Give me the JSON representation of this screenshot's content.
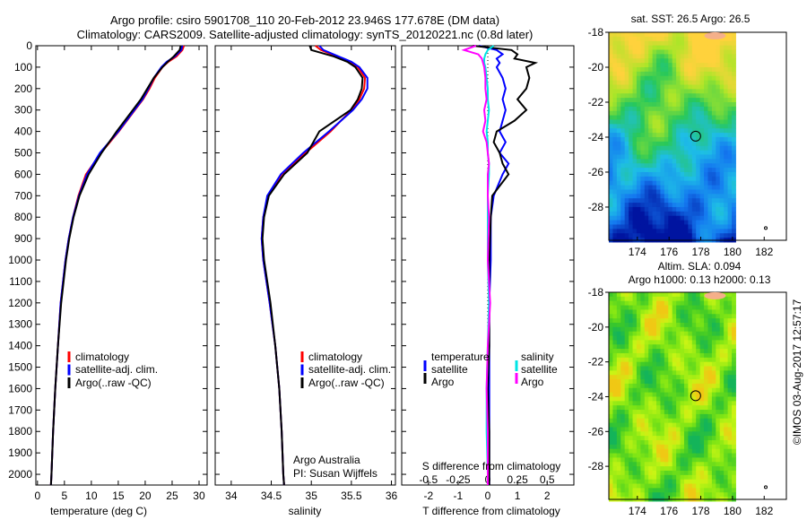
{
  "title": {
    "line1": "Argo profile: csiro 5901708_110 20-Feb-2012 23.946S 177.678E (DM data)",
    "line2": "Climatology: CARS2009. Satellite-adjusted climatology: synTS_20120221.nc (0.8d later)"
  },
  "colors": {
    "climatology": "#ff0000",
    "satellite": "#0000ff",
    "argo": "#000000",
    "sal_satellite": "#00e5e5",
    "sal_argo": "#ff00ff"
  },
  "chart_data": [
    {
      "type": "line",
      "name": "temperature",
      "xlabel": "temperature (deg C)",
      "xlim": [
        -0.3,
        31.5
      ],
      "ylim": [
        2050,
        0
      ],
      "xticks": [
        0,
        5,
        10,
        15,
        20,
        25,
        30
      ],
      "yticks": [
        0,
        100,
        200,
        300,
        400,
        500,
        600,
        700,
        800,
        900,
        1000,
        1100,
        1200,
        1300,
        1400,
        1500,
        1600,
        1700,
        1800,
        1900,
        2000
      ],
      "depth": [
        0,
        20,
        50,
        75,
        100,
        150,
        200,
        250,
        300,
        400,
        500,
        600,
        700,
        800,
        900,
        1000,
        1200,
        1400,
        1600,
        1800,
        2000,
        2050
      ],
      "series": [
        {
          "name": "climatology",
          "values": [
            27.2,
            26.9,
            25.8,
            24.3,
            23.2,
            21.8,
            20.8,
            19.6,
            18.1,
            15.1,
            11.8,
            9.0,
            7.6,
            6.6,
            5.8,
            5.2,
            4.3,
            3.8,
            3.3,
            2.9,
            2.6,
            2.5
          ]
        },
        {
          "name": "satellite-adj. clim.",
          "values": [
            26.9,
            26.7,
            25.5,
            24.0,
            23.0,
            21.6,
            20.6,
            19.5,
            18.0,
            15.0,
            11.6,
            9.2,
            7.7,
            6.6,
            5.8,
            5.2,
            4.3,
            3.8,
            3.3,
            2.9,
            2.6,
            2.5
          ]
        },
        {
          "name": "Argo(..raw -QC)",
          "values": [
            26.6,
            26.4,
            25.3,
            24.2,
            23.2,
            21.6,
            20.4,
            19.2,
            17.7,
            14.7,
            11.9,
            9.5,
            7.8,
            6.7,
            5.9,
            5.3,
            4.4,
            3.8,
            3.3,
            2.9,
            2.6,
            2.5
          ]
        }
      ],
      "legend": [
        "climatology",
        "satellite-adj. clim.",
        "Argo(..raw -QC)"
      ]
    },
    {
      "type": "line",
      "name": "salinity",
      "xlabel": "salinity",
      "xlim": [
        33.8,
        36.05
      ],
      "ylim": [
        2050,
        0
      ],
      "xticks": [
        34,
        34.5,
        35,
        35.5,
        36
      ],
      "depth": [
        0,
        20,
        50,
        75,
        100,
        150,
        200,
        250,
        300,
        400,
        500,
        600,
        700,
        800,
        900,
        1000,
        1200,
        1400,
        1600,
        1800,
        2000,
        2050
      ],
      "series": [
        {
          "name": "climatology",
          "values": [
            35.05,
            35.12,
            35.32,
            35.48,
            35.58,
            35.67,
            35.66,
            35.6,
            35.5,
            35.24,
            34.93,
            34.63,
            34.46,
            34.4,
            34.38,
            34.4,
            34.48,
            34.55,
            34.6,
            34.63,
            34.65,
            34.66
          ]
        },
        {
          "name": "satellite-adj. clim.",
          "values": [
            35.1,
            35.15,
            35.34,
            35.5,
            35.6,
            35.7,
            35.7,
            35.63,
            35.52,
            35.22,
            34.9,
            34.62,
            34.45,
            34.4,
            34.38,
            34.4,
            34.48,
            34.55,
            34.6,
            34.63,
            34.65,
            34.66
          ]
        },
        {
          "name": "Argo(..raw -QC)",
          "values": [
            34.98,
            35.0,
            35.28,
            35.45,
            35.55,
            35.64,
            35.63,
            35.58,
            35.49,
            35.1,
            34.95,
            34.66,
            34.47,
            34.41,
            34.39,
            34.41,
            34.49,
            34.55,
            34.6,
            34.63,
            34.65,
            34.66
          ]
        }
      ],
      "legend": [
        "climatology",
        "satellite-adj. clim.",
        "Argo(..raw -QC)"
      ],
      "annotation": [
        "Argo Australia",
        "PI: Susan Wijffels"
      ]
    },
    {
      "type": "line",
      "name": "differences",
      "xlabel": "T difference from climatology",
      "x2label": "S difference from climatology",
      "xlim": [
        -2.9,
        2.9
      ],
      "xticks": [
        -2,
        -1,
        0,
        1,
        2
      ],
      "x2ticks": [
        -0.5,
        -0.25,
        0,
        0.25,
        0.5
      ],
      "ylim": [
        2050,
        0
      ],
      "depth": [
        0,
        20,
        40,
        60,
        80,
        100,
        150,
        200,
        250,
        300,
        350,
        400,
        450,
        500,
        550,
        600,
        700,
        800,
        1000,
        1200,
        1400,
        1600,
        1800,
        2000,
        2050
      ],
      "series": [
        {
          "name": "T satellite",
          "values": [
            -0.3,
            0.3,
            0.5,
            0.3,
            0.4,
            0.3,
            0.5,
            0.6,
            0.5,
            0.6,
            0.5,
            0.4,
            0.6,
            0.4,
            0.7,
            0.5,
            0.2,
            0.1,
            0.1,
            0.05,
            0.05,
            0.05,
            0.05,
            0.05,
            0.05
          ]
        },
        {
          "name": "T Argo",
          "values": [
            -0.5,
            0.8,
            1.0,
            0.9,
            1.6,
            1.3,
            1.4,
            1.3,
            1.0,
            1.3,
            0.9,
            0.3,
            0.2,
            0.4,
            0.5,
            0.7,
            0.15,
            0.1,
            0.05,
            0.05,
            0.05,
            0.0,
            0.05,
            0.05,
            0.05
          ]
        },
        {
          "name": "S satellite",
          "values": [
            0.05,
            0.0,
            -0.02,
            -0.03,
            -0.03,
            -0.02,
            -0.01,
            0.0,
            0.0,
            0.01,
            0.0,
            -0.01,
            0.0,
            0.0,
            0.01,
            0.01,
            0.0,
            0.0,
            0.0,
            0.01,
            0.0,
            -0.01,
            -0.01,
            0.0,
            0.0
          ]
        },
        {
          "name": "S Argo",
          "values": [
            -0.1,
            -0.2,
            -0.08,
            -0.05,
            -0.04,
            -0.03,
            -0.02,
            -0.02,
            -0.01,
            -0.03,
            -0.02,
            -0.04,
            -0.01,
            0.0,
            0.01,
            0.0,
            0.0,
            0.01,
            0.0,
            0.02,
            0.0,
            -0.01,
            0.0,
            0.0,
            0.0
          ]
        }
      ],
      "legend": {
        "temperature_title": "temperature",
        "salinity_title": "salinity",
        "items": [
          "satellite",
          "Argo",
          "satellite",
          "Argo"
        ]
      }
    }
  ],
  "maps": {
    "sst": {
      "title": "sat. SST: 26.5 Argo: 26.5",
      "lon_ticks": [
        174,
        176,
        178,
        180,
        182
      ],
      "lat_ticks": [
        -18,
        -20,
        -22,
        -24,
        -26,
        -28
      ],
      "argo_lon": 177.678,
      "argo_lat": -23.946
    },
    "sla": {
      "title1": "Altim. SLA: 0.094",
      "title2": "Argo h1000: 0.13 h2000: 0.13",
      "lon_ticks": [
        174,
        176,
        178,
        180,
        182
      ],
      "lat_ticks": [
        -18,
        -20,
        -22,
        -24,
        -26,
        -28
      ],
      "argo_lon": 177.678,
      "argo_lat": -23.946
    }
  },
  "footer": {
    "credit": "©IMOS 03-Aug-2017 12:57:17"
  }
}
